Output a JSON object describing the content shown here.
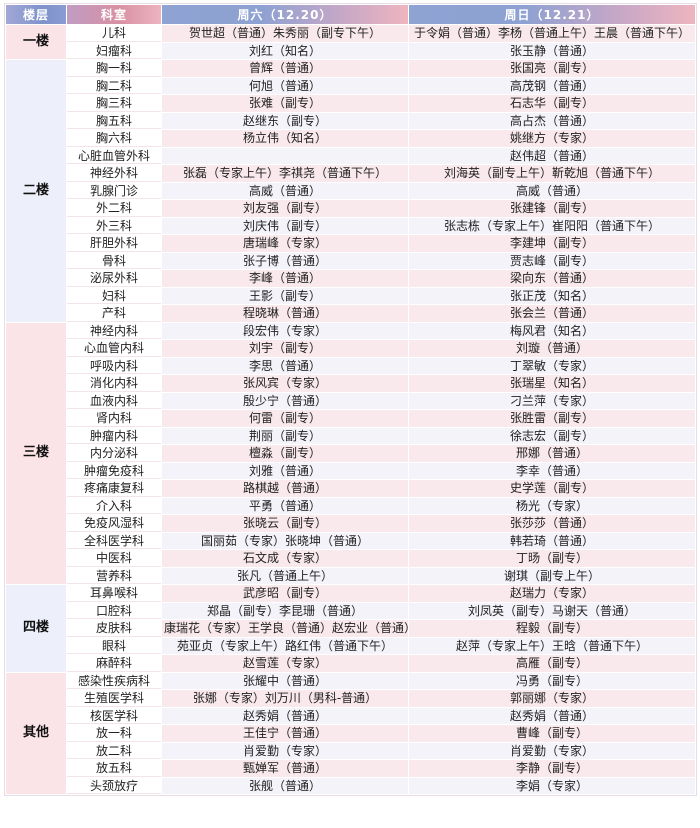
{
  "colors": {
    "header_blue": "#7d93cb",
    "header_pink": "#eeb5bf",
    "row_pink": "#f9e8ec",
    "row_lavender": "#f4f3fa",
    "floor_pink": "#fbe4e8",
    "floor_lavender": "#edf0fa"
  },
  "table": {
    "headers": {
      "floor": "楼层",
      "department": "科室",
      "saturday": "周六（12.20）",
      "sunday": "周日（12.21）"
    },
    "groups": [
      {
        "floor": "一楼",
        "rows": [
          {
            "department": "儿科",
            "saturday": "贺世超（普通）朱秀丽（副专下午）",
            "sunday": "于令娟（普通）李杨（普通上午）王晨（普通下午）"
          },
          {
            "department": "妇瘤科",
            "saturday": "刘红（知名）",
            "sunday": "张玉静（普通）"
          }
        ]
      },
      {
        "floor": "二楼",
        "rows": [
          {
            "department": "胸一科",
            "saturday": "曾辉（普通）",
            "sunday": "张国亮（副专）"
          },
          {
            "department": "胸二科",
            "saturday": "何旭（普通）",
            "sunday": "高茂钢（普通）"
          },
          {
            "department": "胸三科",
            "saturday": "张难（副专）",
            "sunday": "石志华（副专）"
          },
          {
            "department": "胸五科",
            "saturday": "赵继东（副专）",
            "sunday": "高占杰（普通）"
          },
          {
            "department": "胸六科",
            "saturday": "杨立伟（知名）",
            "sunday": "姚继方（专家）"
          },
          {
            "department": "心脏血管外科",
            "saturday": "",
            "sunday": "赵伟超（普通）"
          },
          {
            "department": "神经外科",
            "saturday": "张磊（专家上午）李祺尧（普通下午）",
            "sunday": "刘海英（副专上午）靳乾旭（普通下午）"
          },
          {
            "department": "乳腺门诊",
            "saturday": "高威（普通）",
            "sunday": "高威（普通）"
          },
          {
            "department": "外二科",
            "saturday": "刘友强（副专）",
            "sunday": "张建锋（副专）"
          },
          {
            "department": "外三科",
            "saturday": "刘庆伟（副专）",
            "sunday": "张志栋（专家上午）崔阳阳（普通下午）"
          },
          {
            "department": "肝胆外科",
            "saturday": "唐瑞峰（专家）",
            "sunday": "李建坤（副专）"
          },
          {
            "department": "骨科",
            "saturday": "张子博（普通）",
            "sunday": "贾志峰（副专）"
          },
          {
            "department": "泌尿外科",
            "saturday": "李峰（普通）",
            "sunday": "梁向东（普通）"
          },
          {
            "department": "妇科",
            "saturday": "王影（副专）",
            "sunday": "张正茂（知名）"
          },
          {
            "department": "产科",
            "saturday": "程晓琳（普通）",
            "sunday": "张会兰（普通）"
          }
        ]
      },
      {
        "floor": "三楼",
        "rows": [
          {
            "department": "神经内科",
            "saturday": "段宏伟（专家）",
            "sunday": "梅风君（知名）"
          },
          {
            "department": "心血管内科",
            "saturday": "刘宇（副专）",
            "sunday": "刘璇（普通）"
          },
          {
            "department": "呼吸内科",
            "saturday": "李思（普通）",
            "sunday": "丁翠敏（专家）"
          },
          {
            "department": "消化内科",
            "saturday": "张风宾（专家）",
            "sunday": "张瑞星（知名）"
          },
          {
            "department": "血液内科",
            "saturday": "殷少宁（普通）",
            "sunday": "刁兰萍（专家）"
          },
          {
            "department": "肾内科",
            "saturday": "何雷（副专）",
            "sunday": "张胜雷（副专）"
          },
          {
            "department": "肿瘤内科",
            "saturday": "荆丽（副专）",
            "sunday": "徐志宏（副专）"
          },
          {
            "department": "内分泌科",
            "saturday": "檀淼（副专）",
            "sunday": "邢娜（普通）"
          },
          {
            "department": "肿瘤免疫科",
            "saturday": "刘雅（普通）",
            "sunday": "李幸（普通）"
          },
          {
            "department": "疼痛康复科",
            "saturday": "路棋越（普通）",
            "sunday": "史学莲（副专）"
          },
          {
            "department": "介入科",
            "saturday": "平勇（普通）",
            "sunday": "杨光（专家）"
          },
          {
            "department": "免疫风湿科",
            "saturday": "张晓云（副专）",
            "sunday": "张莎莎（普通）"
          },
          {
            "department": "全科医学科",
            "saturday": "国丽茹（专家）张晓坤（普通）",
            "sunday": "韩若琦（普通）"
          },
          {
            "department": "中医科",
            "saturday": "石文成（专家）",
            "sunday": "丁旸（副专）"
          },
          {
            "department": "营养科",
            "saturday": "张凡（普通上午）",
            "sunday": "谢琪（副专上午）"
          }
        ]
      },
      {
        "floor": "四楼",
        "rows": [
          {
            "department": "耳鼻喉科",
            "saturday": "武彦昭（副专）",
            "sunday": "赵瑞力（专家）"
          },
          {
            "department": "口腔科",
            "saturday": "郑晶（副专）李昆珊（普通）",
            "sunday": "刘凤英（副专）马谢天（普通）"
          },
          {
            "department": "皮肤科",
            "saturday": "康瑞花（专家）王学良（普通）赵宏业（普通）",
            "sunday": "程毅（副专）"
          },
          {
            "department": "眼科",
            "saturday": "苑亚贞（专家上午）路红伟（普通下午）",
            "sunday": "赵萍（专家上午）王晗（普通下午）"
          },
          {
            "department": "麻醉科",
            "saturday": "赵雪莲（专家）",
            "sunday": "高雁（副专）"
          }
        ]
      },
      {
        "floor": "其他",
        "rows": [
          {
            "department": "感染性疾病科",
            "saturday": "张耀中（普通）",
            "sunday": "冯勇（副专）"
          },
          {
            "department": "生殖医学科",
            "saturday": "张娜（专家）刘万川（男科-普通）",
            "sunday": "郭丽娜（专家）"
          },
          {
            "department": "核医学科",
            "saturday": "赵秀娟（普通）",
            "sunday": "赵秀娟（普通）"
          },
          {
            "department": "放一科",
            "saturday": "王佳宁（普通）",
            "sunday": "曹峰（副专）"
          },
          {
            "department": "放二科",
            "saturday": "肖爱勤（专家）",
            "sunday": "肖爱勤（专家）"
          },
          {
            "department": "放五科",
            "saturday": "甄婵军（普通）",
            "sunday": "李静（副专）"
          },
          {
            "department": "头颈放疗",
            "saturday": "张舰（普通）",
            "sunday": "李娟（专家）"
          }
        ]
      }
    ]
  }
}
